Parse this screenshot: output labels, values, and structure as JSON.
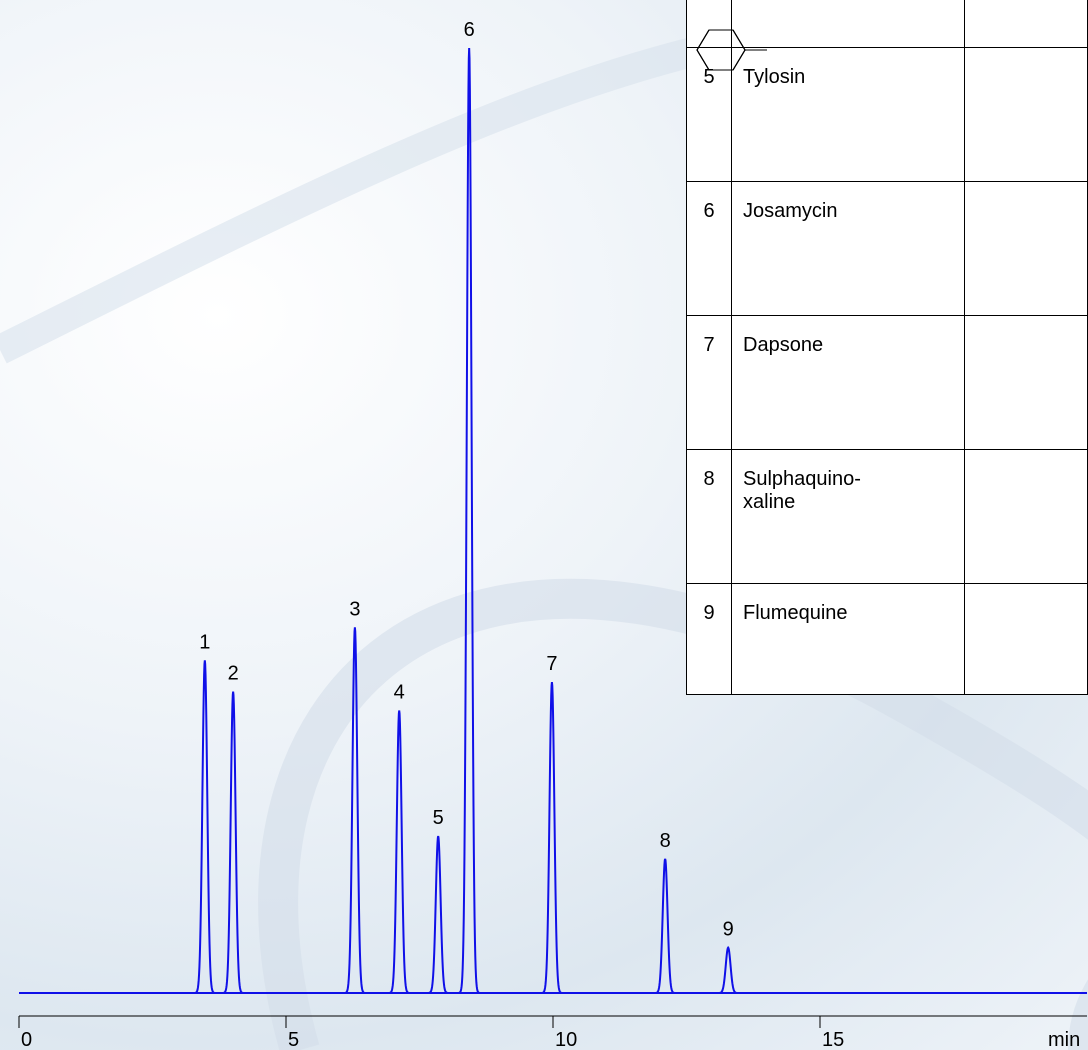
{
  "chart_data": {
    "type": "line",
    "x_label": "min",
    "xlim": [
      0,
      20
    ],
    "xticks": [
      0,
      5,
      10,
      15
    ],
    "ylim": [
      0,
      100
    ],
    "color": "#1010e8",
    "peak_labels": [
      "1",
      "2",
      "3",
      "4",
      "5",
      "6",
      "7",
      "8",
      "9"
    ],
    "x": [
      3.48,
      4.01,
      6.29,
      7.12,
      7.85,
      8.43,
      9.98,
      12.1,
      13.28
    ],
    "values": [
      35.2,
      31.9,
      38.7,
      29.9,
      16.6,
      100,
      32.9,
      14.2,
      4.8
    ]
  },
  "table": {
    "rows": [
      [
        "5",
        "Tylosin"
      ],
      [
        "6",
        "Josamycin"
      ],
      [
        "7",
        "Dapsone"
      ],
      [
        "8",
        "Sulphaquino-\nxaline"
      ],
      [
        "9",
        "Flumequine"
      ]
    ]
  }
}
